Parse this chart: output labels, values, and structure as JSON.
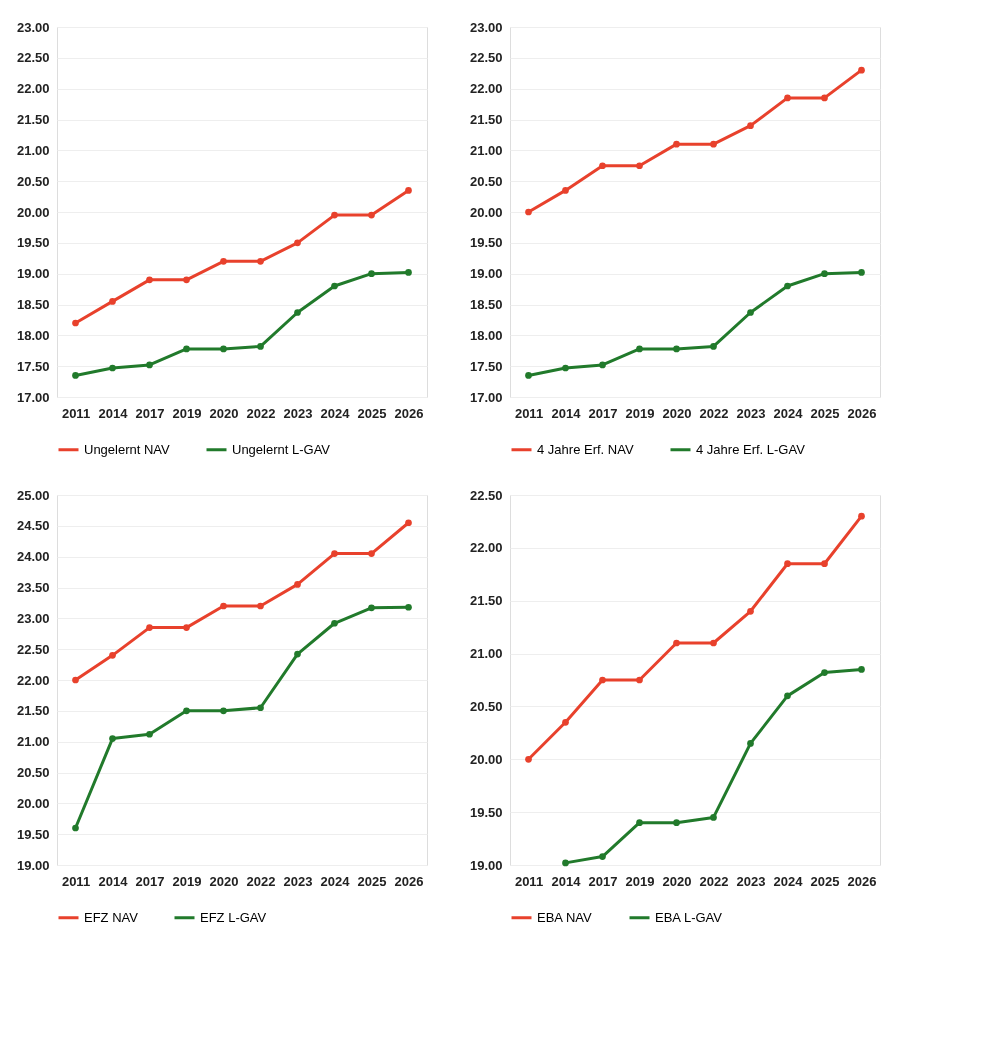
{
  "chart_data": [
    {
      "type": "line",
      "categories": [
        "2011",
        "2014",
        "2017",
        "2019",
        "2020",
        "2022",
        "2023",
        "2024",
        "2025",
        "2026"
      ],
      "ylim": [
        17,
        23
      ],
      "yticks": [
        {
          "value": 17,
          "label": "17.00"
        },
        {
          "value": 17.5,
          "label": "17.50"
        },
        {
          "value": 18,
          "label": "18.00"
        },
        {
          "value": 18.5,
          "label": "18.50"
        },
        {
          "value": 19,
          "label": "19.00"
        },
        {
          "value": 19.5,
          "label": "19.50"
        },
        {
          "value": 20,
          "label": "20.00"
        },
        {
          "value": 20.5,
          "label": "20.50"
        },
        {
          "value": 21,
          "label": "21.00"
        },
        {
          "value": 21.5,
          "label": "21.50"
        },
        {
          "value": 22,
          "label": "22.00"
        },
        {
          "value": 22.5,
          "label": "22.50"
        },
        {
          "value": 23,
          "label": "23.00"
        }
      ],
      "grid": "y",
      "legend": "bottom",
      "marker": "circle",
      "line_style": "solid",
      "series": [
        {
          "name": "Ungelernt NAV",
          "color": "#e8412c",
          "values": [
            18.2,
            18.55,
            18.9,
            18.9,
            19.2,
            19.2,
            19.5,
            19.95,
            19.95,
            20.35
          ]
        },
        {
          "name": "Ungelernt L-GAV",
          "color": "#217a2b",
          "values": [
            17.35,
            17.47,
            17.52,
            17.78,
            17.78,
            17.82,
            18.37,
            18.8,
            19.0,
            19.02
          ]
        }
      ]
    },
    {
      "type": "line",
      "categories": [
        "2011",
        "2014",
        "2017",
        "2019",
        "2020",
        "2022",
        "2023",
        "2024",
        "2025",
        "2026"
      ],
      "ylim": [
        17,
        23
      ],
      "yticks": [
        {
          "value": 17,
          "label": "17.00"
        },
        {
          "value": 17.5,
          "label": "17.50"
        },
        {
          "value": 18,
          "label": "18.00"
        },
        {
          "value": 18.5,
          "label": "18.50"
        },
        {
          "value": 19,
          "label": "19.00"
        },
        {
          "value": 19.5,
          "label": "19.50"
        },
        {
          "value": 20,
          "label": "20.00"
        },
        {
          "value": 20.5,
          "label": "20.50"
        },
        {
          "value": 21,
          "label": "21.00"
        },
        {
          "value": 21.5,
          "label": "21.50"
        },
        {
          "value": 22,
          "label": "22.00"
        },
        {
          "value": 22.5,
          "label": "22.50"
        },
        {
          "value": 23,
          "label": "23.00"
        }
      ],
      "grid": "y",
      "legend": "bottom",
      "marker": "circle",
      "line_style": "solid",
      "series": [
        {
          "name": "4 Jahre Erf. NAV",
          "color": "#e8412c",
          "values": [
            20.0,
            20.35,
            20.75,
            20.75,
            21.1,
            21.1,
            21.4,
            21.85,
            21.85,
            22.3
          ]
        },
        {
          "name": "4 Jahre Erf. L-GAV",
          "color": "#217a2b",
          "values": [
            17.35,
            17.47,
            17.52,
            17.78,
            17.78,
            17.82,
            18.37,
            18.8,
            19.0,
            19.02
          ]
        }
      ]
    },
    {
      "type": "line",
      "categories": [
        "2011",
        "2014",
        "2017",
        "2019",
        "2020",
        "2022",
        "2023",
        "2024",
        "2025",
        "2026"
      ],
      "ylim": [
        19,
        25
      ],
      "yticks": [
        {
          "value": 19,
          "label": "19.00"
        },
        {
          "value": 19.5,
          "label": "19.50"
        },
        {
          "value": 20,
          "label": "20.00"
        },
        {
          "value": 20.5,
          "label": "20.50"
        },
        {
          "value": 21,
          "label": "21.00"
        },
        {
          "value": 21.5,
          "label": "21.50"
        },
        {
          "value": 22,
          "label": "22.00"
        },
        {
          "value": 22.5,
          "label": "22.50"
        },
        {
          "value": 23,
          "label": "23.00"
        },
        {
          "value": 23.5,
          "label": "23.50"
        },
        {
          "value": 24,
          "label": "24.00"
        },
        {
          "value": 24.5,
          "label": "24.50"
        },
        {
          "value": 25,
          "label": "25.00"
        }
      ],
      "grid": "y",
      "legend": "bottom",
      "marker": "circle",
      "line_style": "solid",
      "series": [
        {
          "name": "EFZ NAV",
          "color": "#e8412c",
          "values": [
            22.0,
            22.4,
            22.85,
            22.85,
            23.2,
            23.2,
            23.55,
            24.05,
            24.05,
            24.55
          ]
        },
        {
          "name": "EFZ L-GAV",
          "color": "#217a2b",
          "values": [
            19.6,
            21.05,
            21.12,
            21.5,
            21.5,
            21.55,
            22.42,
            22.92,
            23.17,
            23.18
          ]
        }
      ]
    },
    {
      "type": "line",
      "categories": [
        "2011",
        "2014",
        "2017",
        "2019",
        "2020",
        "2022",
        "2023",
        "2024",
        "2025",
        "2026"
      ],
      "ylim": [
        19,
        22.5
      ],
      "yticks": [
        {
          "value": 19,
          "label": "19.00"
        },
        {
          "value": 19.5,
          "label": "19.50"
        },
        {
          "value": 20,
          "label": "20.00"
        },
        {
          "value": 20.5,
          "label": "20.50"
        },
        {
          "value": 21,
          "label": "21.00"
        },
        {
          "value": 21.5,
          "label": "21.50"
        },
        {
          "value": 22,
          "label": "22.00"
        },
        {
          "value": 22.5,
          "label": "22.50"
        }
      ],
      "grid": "y",
      "legend": "bottom",
      "marker": "circle",
      "line_style": "solid",
      "series": [
        {
          "name": "EBA NAV",
          "color": "#e8412c",
          "values": [
            20.0,
            20.35,
            20.75,
            20.75,
            21.1,
            21.1,
            21.4,
            21.85,
            21.85,
            22.3
          ]
        },
        {
          "name": "EBA L-GAV",
          "color": "#217a2b",
          "values": [
            null,
            19.02,
            19.08,
            19.4,
            19.4,
            19.45,
            20.15,
            20.6,
            20.82,
            20.85
          ]
        }
      ]
    }
  ]
}
